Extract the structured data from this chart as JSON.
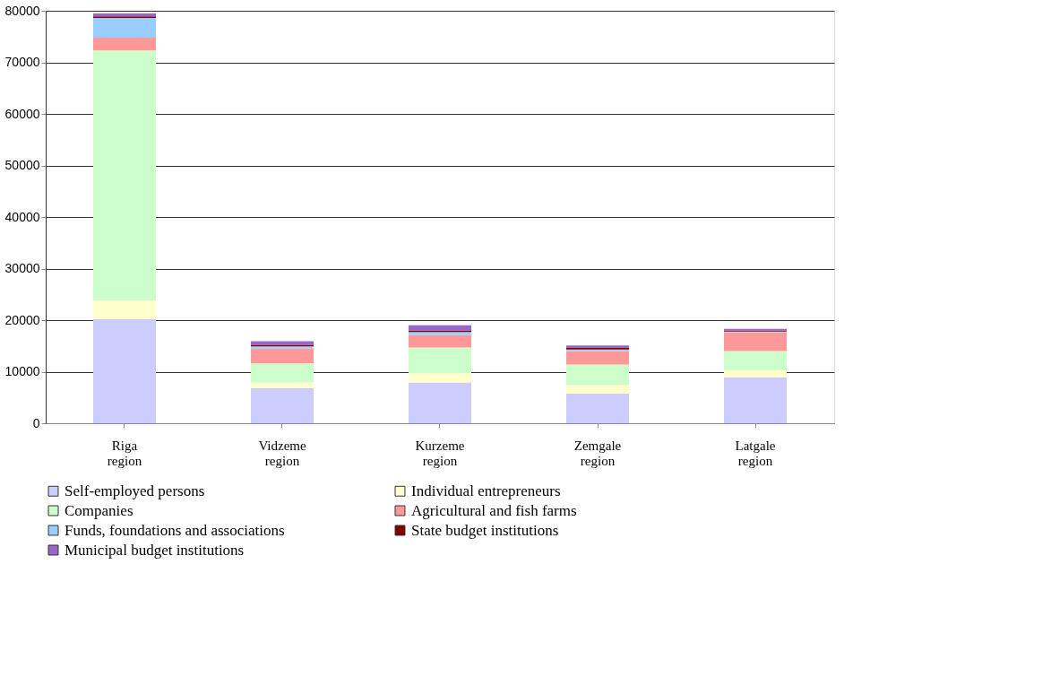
{
  "chart_data": {
    "type": "bar",
    "stacked": true,
    "categories": [
      "Riga region",
      "Vidzeme region",
      "Kurzeme region",
      "Zemgale region",
      "Latgale region"
    ],
    "series": [
      {
        "name": "Self-employed persons",
        "color": "#ccccff",
        "values": [
          20200,
          6800,
          7900,
          5800,
          8900
        ]
      },
      {
        "name": "Individual entrepreneurs",
        "color": "#ffffcc",
        "values": [
          3600,
          1100,
          1800,
          1600,
          1400
        ]
      },
      {
        "name": "Companies",
        "color": "#ccffcc",
        "values": [
          48500,
          3700,
          5000,
          4000,
          3700
        ]
      },
      {
        "name": "Agricultural and fish farms",
        "color": "#ff9999",
        "values": [
          2500,
          2900,
          2400,
          2600,
          3600
        ]
      },
      {
        "name": "Funds, foundations and associations",
        "color": "#99ccff",
        "values": [
          3800,
          400,
          600,
          300,
          200
        ]
      },
      {
        "name": "State budget institutions",
        "color": "#800000",
        "values": [
          300,
          300,
          300,
          300,
          200
        ]
      },
      {
        "name": "Municipal budget institutions",
        "color": "#9966cc",
        "values": [
          600,
          700,
          1000,
          500,
          300
        ]
      }
    ],
    "ylim": [
      0,
      80000
    ],
    "yticks": [
      0,
      10000,
      20000,
      30000,
      40000,
      50000,
      60000,
      70000,
      80000
    ],
    "grid": "y",
    "legend": "bottom"
  }
}
